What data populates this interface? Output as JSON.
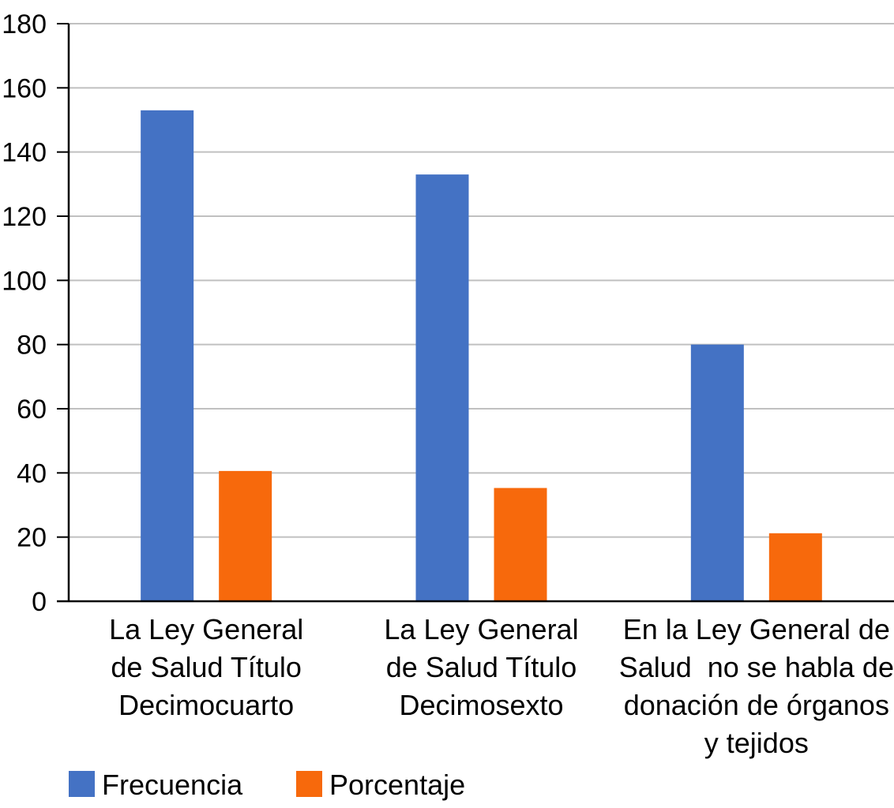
{
  "chart_data": {
    "type": "bar",
    "title": "",
    "xlabel": "",
    "ylabel": "",
    "ylim": [
      0,
      180
    ],
    "yticks": [
      0,
      20,
      40,
      60,
      80,
      100,
      120,
      140,
      160,
      180
    ],
    "grid": true,
    "legend_position": "bottom-left",
    "categories": [
      [
        "La Ley General",
        "de Salud Título",
        "Decimocuarto"
      ],
      [
        "La Ley General",
        "de Salud Título",
        "Decimosexto"
      ],
      [
        "En la Ley General de",
        "Salud  no se habla de",
        "donación de órganos",
        "y tejidos"
      ]
    ],
    "series": [
      {
        "name": "Frecuencia",
        "color": "#4472C4",
        "values": [
          153,
          133,
          80
        ]
      },
      {
        "name": "Porcentaje",
        "color": "#F7690C",
        "values": [
          40.6,
          35.3,
          21.2
        ]
      }
    ],
    "colors": {
      "grid": "#C0C0C0",
      "axis": "#000000"
    }
  }
}
